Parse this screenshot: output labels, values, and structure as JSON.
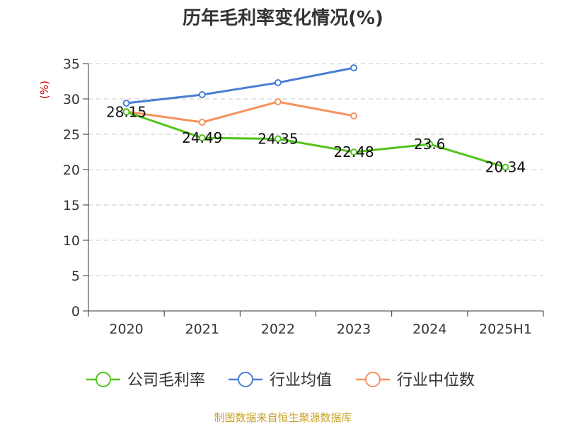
{
  "title": "历年毛利率变化情况(%)",
  "source": "制图数据来自恒生聚源数据库",
  "chart_data": {
    "type": "line",
    "title": "历年毛利率变化情况(%)",
    "ylabel": "(%)",
    "xlabel": "",
    "categories": [
      "2020",
      "2021",
      "2022",
      "2023",
      "2024",
      "2025H1"
    ],
    "ylim": [
      0,
      35
    ],
    "yticks": [
      0,
      5,
      10,
      15,
      20,
      25,
      30,
      35
    ],
    "grid": true,
    "legend_position": "bottom",
    "series": [
      {
        "name": "公司毛利率",
        "color": "#52c41a",
        "values": [
          28.15,
          24.49,
          24.35,
          22.48,
          23.6,
          20.34
        ],
        "labels": [
          "28.15",
          "24.49",
          "24.35",
          "22.48",
          "23.6",
          "20.34"
        ]
      },
      {
        "name": "行业均值",
        "color": "#4a7fd4",
        "values": [
          29.4,
          30.6,
          32.3,
          34.4,
          null,
          null
        ]
      },
      {
        "name": "行业中位数",
        "color": "#f5925e",
        "values": [
          28.2,
          26.7,
          29.6,
          27.6,
          null,
          null
        ]
      }
    ]
  }
}
